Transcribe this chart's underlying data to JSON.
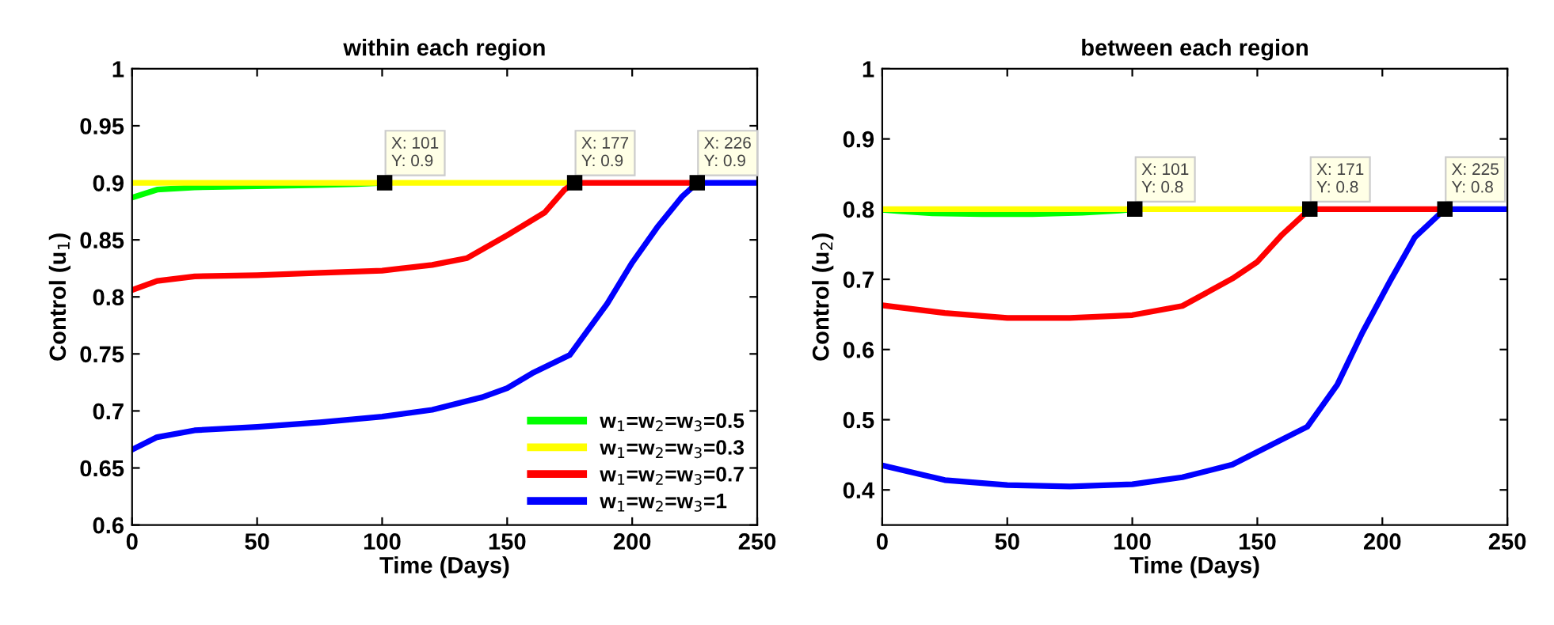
{
  "chart_data": [
    {
      "type": "line",
      "title": "within each region",
      "xlabel": "Time (Days)",
      "ylabel": "Control (u$_{1}$)",
      "xlim": [
        0,
        250
      ],
      "xticks": [
        0,
        50,
        100,
        150,
        200,
        250
      ],
      "ylim": [
        0.6,
        1
      ],
      "yticks": [
        0.6,
        0.65,
        0.7,
        0.75,
        0.8,
        0.85,
        0.9,
        0.95,
        1
      ],
      "grid": false,
      "legend": "bottom right",
      "line_style": "solid",
      "series": [
        {
          "name": "w$_{1}$=w$_{2}$=w$_{3}$=0.5",
          "color": "#00ff00",
          "x": [
            0,
            10,
            25,
            50,
            75,
            90,
            101
          ],
          "values": [
            0.887,
            0.894,
            0.896,
            0.897,
            0.898,
            0.899,
            0.9
          ]
        },
        {
          "name": "w$_{1}$=w$_{2}$=w$_{3}$=0.3",
          "color": "#ffff00",
          "x": [
            0,
            177
          ],
          "values": [
            0.9,
            0.9
          ]
        },
        {
          "name": "w$_{1}$=w$_{2}$=w$_{3}$=0.7",
          "color": "#ff0000",
          "x": [
            0,
            10,
            25,
            50,
            75,
            100,
            120,
            134,
            150,
            165,
            173,
            177,
            226
          ],
          "values": [
            0.806,
            0.814,
            0.818,
            0.819,
            0.821,
            0.823,
            0.828,
            0.834,
            0.854,
            0.874,
            0.894,
            0.9,
            0.9
          ]
        },
        {
          "name": "w$_{1}$=w$_{2}$=w$_{3}$=1",
          "color": "#0000ff",
          "x": [
            0,
            10,
            25,
            50,
            75,
            100,
            120,
            140,
            150,
            160,
            175,
            190,
            200,
            210,
            220,
            226,
            250
          ],
          "values": [
            0.666,
            0.677,
            0.683,
            0.686,
            0.69,
            0.695,
            0.701,
            0.712,
            0.72,
            0.733,
            0.749,
            0.794,
            0.83,
            0.861,
            0.888,
            0.9,
            0.9
          ]
        }
      ],
      "annotations": [
        {
          "text": "X: 101\nY: 0.9",
          "x": 101,
          "y": 0.9
        },
        {
          "text": "X: 177\nY: 0.9",
          "x": 177,
          "y": 0.9
        },
        {
          "text": "X: 226\nY: 0.9",
          "x": 226,
          "y": 0.9
        }
      ]
    },
    {
      "type": "line",
      "title": "between each region",
      "xlabel": "Time (Days)",
      "ylabel": "Control (u$_{2}$)",
      "xlim": [
        0,
        250
      ],
      "xticks": [
        0,
        50,
        100,
        150,
        200,
        250
      ],
      "ylim": [
        0.35,
        1
      ],
      "yticks": [
        0.4,
        0.5,
        0.6,
        0.7,
        0.8,
        0.9,
        1
      ],
      "grid": false,
      "legend": false,
      "line_style": "solid",
      "series": [
        {
          "color": "#00ff00",
          "x": [
            0,
            7,
            20,
            40,
            60,
            80,
            95,
            101
          ],
          "values": [
            0.799,
            0.797,
            0.794,
            0.793,
            0.793,
            0.795,
            0.798,
            0.8
          ]
        },
        {
          "color": "#ffff00",
          "x": [
            0,
            171
          ],
          "values": [
            0.8,
            0.8
          ]
        },
        {
          "color": "#ff0000",
          "x": [
            0,
            25,
            50,
            75,
            100,
            120,
            140,
            150,
            160,
            171,
            225
          ],
          "values": [
            0.663,
            0.652,
            0.645,
            0.645,
            0.649,
            0.662,
            0.701,
            0.725,
            0.764,
            0.8,
            0.8
          ]
        },
        {
          "color": "#0000ff",
          "x": [
            0,
            25,
            50,
            75,
            100,
            120,
            140,
            150,
            170,
            182,
            192,
            203,
            213,
            225,
            250
          ],
          "values": [
            0.435,
            0.414,
            0.407,
            0.405,
            0.408,
            0.418,
            0.436,
            0.454,
            0.49,
            0.55,
            0.624,
            0.697,
            0.76,
            0.8,
            0.8
          ]
        }
      ],
      "annotations": [
        {
          "text": "X: 101\nY: 0.8",
          "x": 101,
          "y": 0.8
        },
        {
          "text": "X: 171\nY: 0.8",
          "x": 171,
          "y": 0.8
        },
        {
          "text": "X: 225\nY: 0.8",
          "x": 225,
          "y": 0.8
        }
      ]
    }
  ]
}
